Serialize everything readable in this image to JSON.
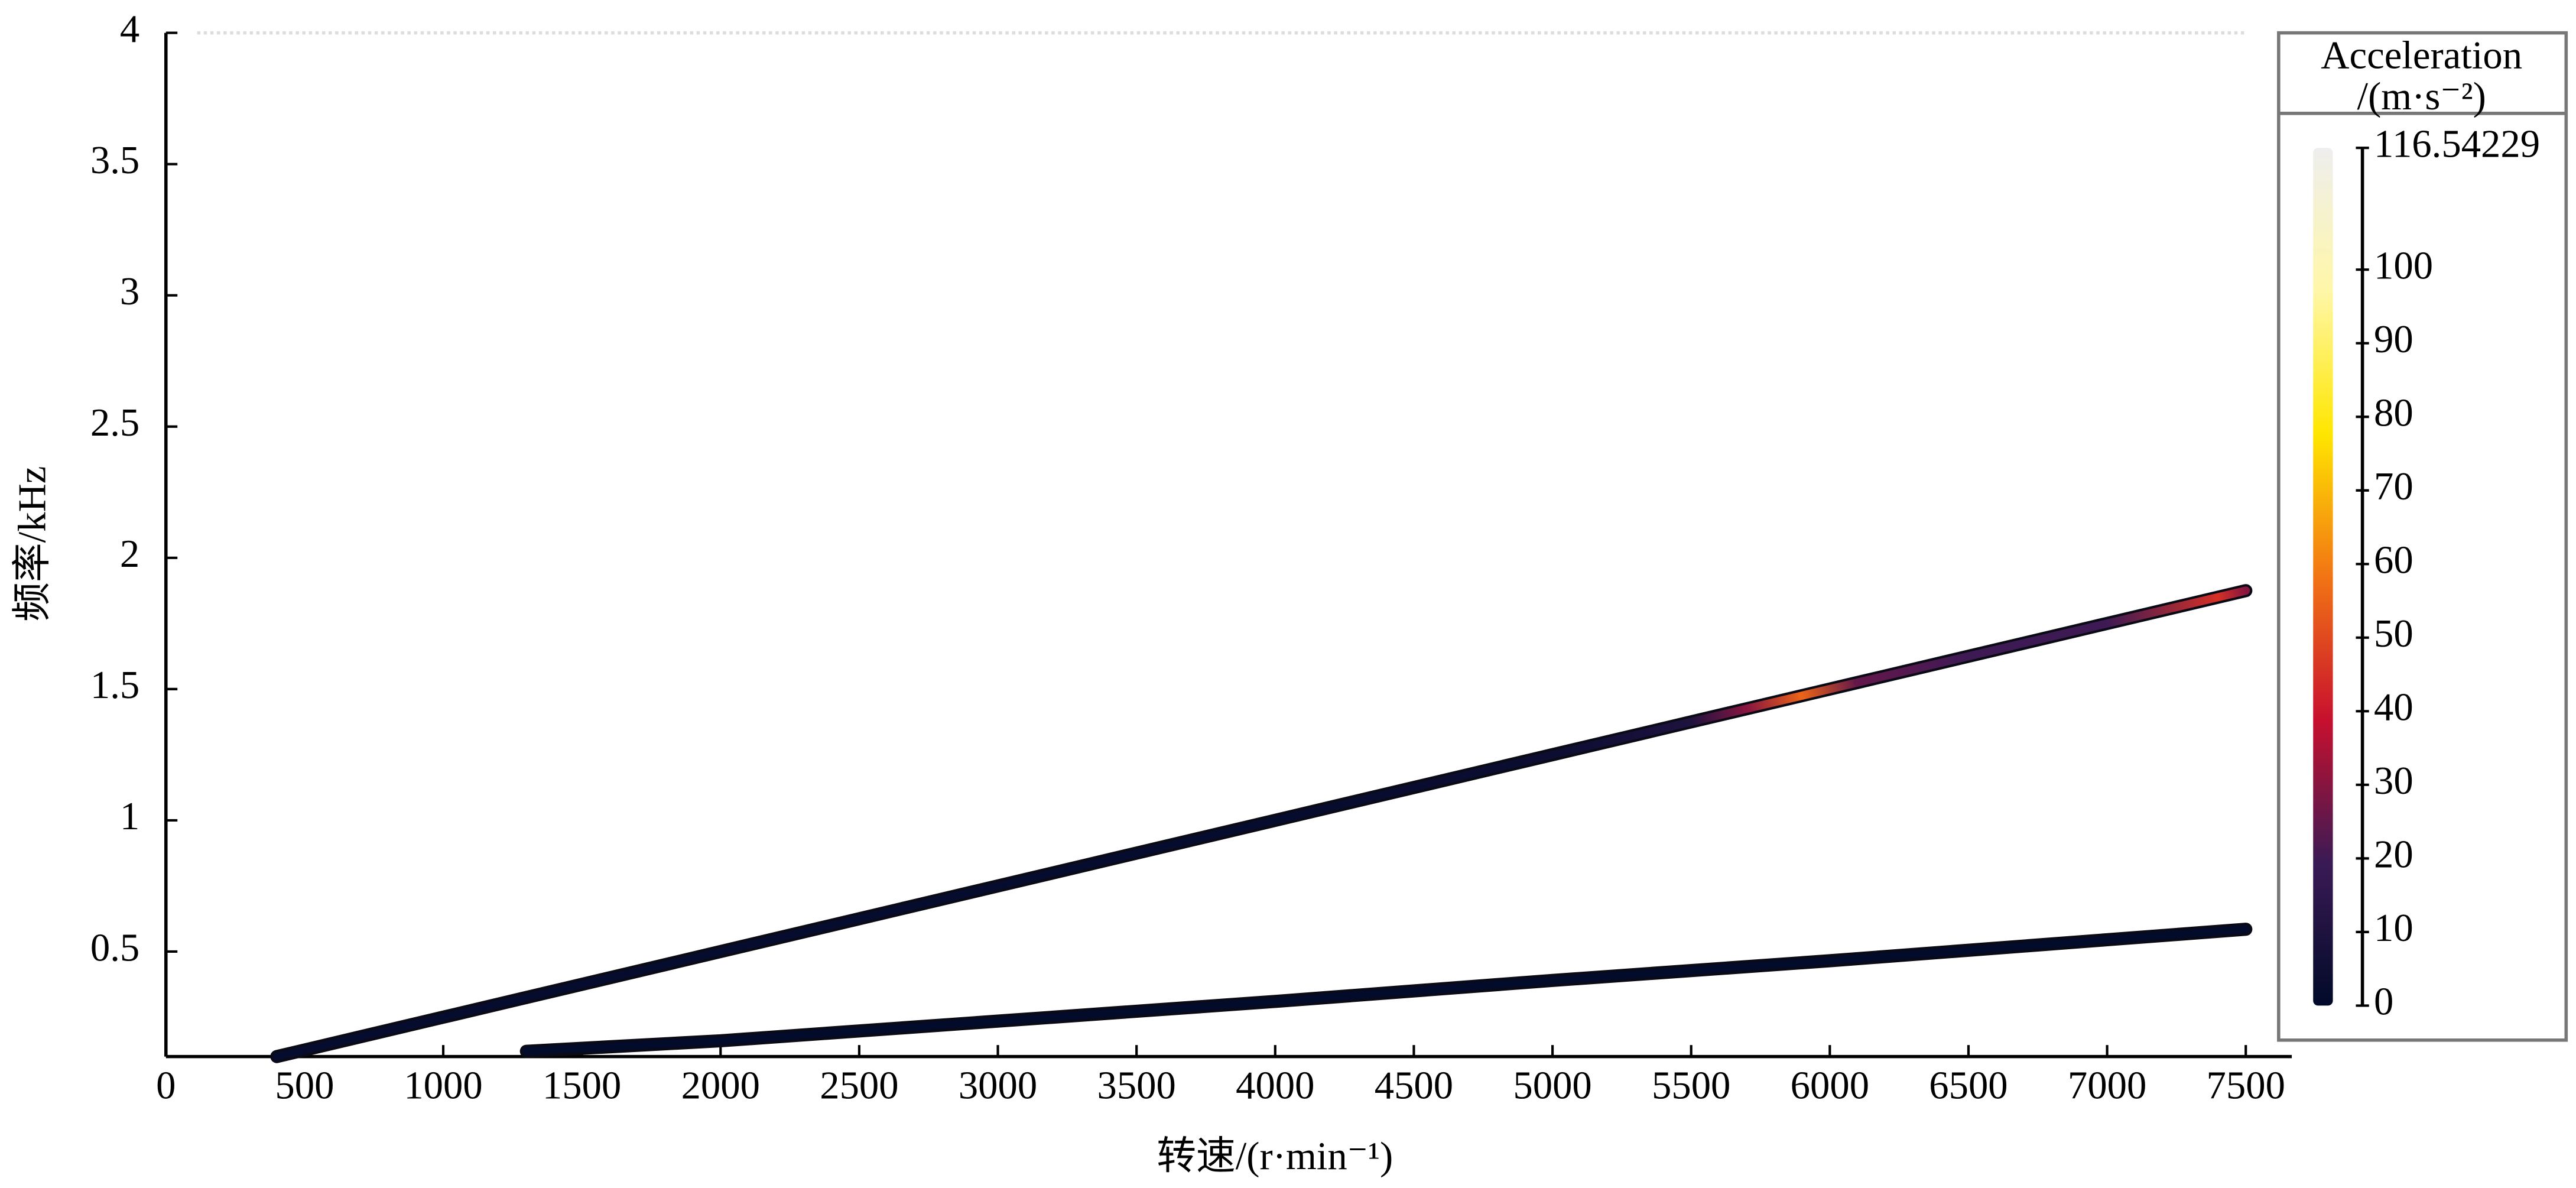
{
  "chart_data": {
    "type": "order-tracking",
    "xlabel": "转速/(r·min⁻¹)",
    "ylabel": "频率/kHz",
    "xlim": [
      0,
      7500
    ],
    "xticks": [
      0,
      500,
      1000,
      1500,
      2000,
      2500,
      3000,
      3500,
      4000,
      4500,
      5000,
      5500,
      6000,
      6500,
      7000,
      7500
    ],
    "ylim": [
      0.1,
      4.0
    ],
    "yticks": [
      0.5,
      1.0,
      1.5,
      2.0,
      2.5,
      3.0,
      3.5,
      4.0
    ],
    "series": [
      {
        "x": [
          400,
          1000,
          2000,
          3000,
          4000,
          5000,
          5500,
          5700,
          5900,
          6100,
          6500,
          7000,
          7400,
          7500
        ],
        "values": [
          0.1,
          0.25,
          0.5,
          0.75,
          1.0,
          1.25,
          1.375,
          1.425,
          1.475,
          1.525,
          1.625,
          1.75,
          1.85,
          1.875
        ],
        "acceleration": [
          2,
          2,
          2,
          2,
          2,
          4,
          10,
          30,
          55,
          25,
          20,
          20,
          45,
          30
        ]
      },
      {
        "x": [
          1300,
          2000,
          3000,
          4000,
          5000,
          6000,
          7000,
          7500
        ],
        "values": [
          0.12,
          0.16,
          0.235,
          0.31,
          0.39,
          0.465,
          0.545,
          0.585
        ],
        "acceleration": [
          1,
          1,
          1,
          1,
          1,
          1,
          1,
          1
        ]
      }
    ],
    "colorbar": {
      "title": [
        "Acceleration",
        "/(m·s⁻²)"
      ],
      "lim": [
        0,
        116.54229
      ],
      "ticks": [
        0,
        10,
        20,
        30,
        40,
        50,
        60,
        70,
        80,
        90,
        100,
        116.54229
      ],
      "colormap": [
        "#000a28",
        "#3a1a55",
        "#c8102e",
        "#f27414",
        "#ffe600",
        "#fff7a8",
        "#eeeeee"
      ]
    }
  }
}
